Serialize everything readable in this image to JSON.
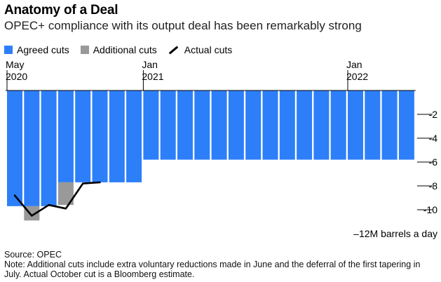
{
  "title": "Anatomy of a Deal",
  "subtitle": "OPEC+ compliance with its output deal has been remarkably strong",
  "legend": {
    "agreed": "Agreed cuts",
    "additional": "Additional cuts",
    "actual": "Actual cuts"
  },
  "colors": {
    "agreed": "#2d7ff9",
    "additional": "#999999",
    "actual": "#000000",
    "axis": "#000000"
  },
  "footer": {
    "source": "Source: OPEC",
    "note": "Note: Additional cuts include extra voluntary reductions made in June and the deferral of the first tapering in July. Actual October cut is a Bloomberg estimate."
  },
  "chart_data": {
    "type": "bar",
    "categories": [
      "May 2020",
      "Jun 2020",
      "Jul 2020",
      "Aug 2020",
      "Sep 2020",
      "Oct 2020",
      "Nov 2020",
      "Dec 2020",
      "Jan 2021",
      "Feb 2021",
      "Mar 2021",
      "Apr 2021",
      "May 2021",
      "Jun 2021",
      "Jul 2021",
      "Aug 2021",
      "Sep 2021",
      "Oct 2021",
      "Nov 2021",
      "Dec 2021",
      "Jan 2022",
      "Feb 2022",
      "Mar 2022",
      "Apr 2022"
    ],
    "x_tick_labels": [
      {
        "index": 0,
        "line1": "May",
        "line2": "2020"
      },
      {
        "index": 8,
        "line1": "Jan",
        "line2": "2021"
      },
      {
        "index": 20,
        "line1": "Jan",
        "line2": "2022"
      }
    ],
    "series": [
      {
        "name": "Agreed cuts",
        "type": "bar",
        "values": [
          -9.7,
          -9.7,
          -9.7,
          -7.7,
          -7.7,
          -7.7,
          -7.7,
          -7.7,
          -5.8,
          -5.8,
          -5.8,
          -5.8,
          -5.8,
          -5.8,
          -5.8,
          -5.8,
          -5.8,
          -5.8,
          -5.8,
          -5.8,
          -5.8,
          -5.8,
          -5.8,
          -5.8
        ]
      },
      {
        "name": "Additional cuts",
        "type": "bar_stacked",
        "values": [
          0,
          -1.2,
          0,
          -1.9,
          0,
          0,
          0,
          0,
          0,
          0,
          0,
          0,
          0,
          0,
          0,
          0,
          0,
          0,
          0,
          0,
          0,
          0,
          0,
          0
        ]
      },
      {
        "name": "Actual cuts",
        "type": "line",
        "points": [
          [
            0,
            -8.8
          ],
          [
            1,
            -10.5
          ],
          [
            2,
            -9.6
          ],
          [
            3,
            -9.9
          ],
          [
            4,
            -7.8
          ],
          [
            5,
            -7.7
          ]
        ]
      }
    ],
    "y_ticks": [
      -2,
      -4,
      -6,
      -8,
      -10
    ],
    "y_tick_labels": [
      "-2",
      "-4",
      "-6",
      "-8",
      "-10"
    ],
    "ylabel": "–12M barrels a day",
    "ylim": [
      -12,
      0
    ]
  }
}
